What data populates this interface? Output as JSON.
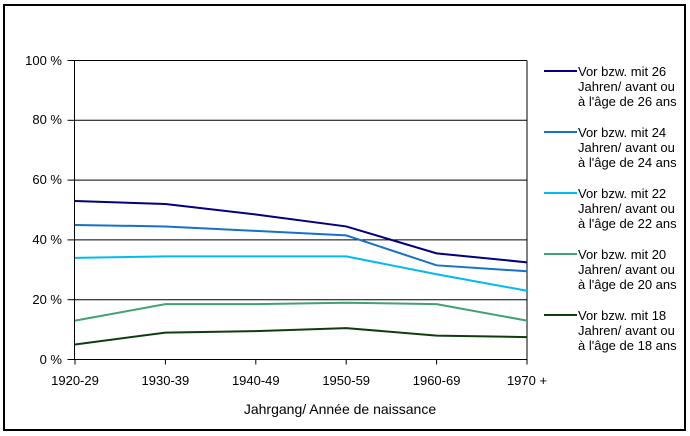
{
  "chart_data": {
    "type": "line",
    "title": "",
    "x_axis_title": "Jahrgang/ Année de naissance",
    "categories": [
      "1920-29",
      "1930-39",
      "1940-49",
      "1950-59",
      "1960-69",
      "1970 +"
    ],
    "ylim": [
      0,
      100
    ],
    "grid": true,
    "legend_position": "right",
    "y_ticks": [
      {
        "label": "100 %",
        "value": 100
      },
      {
        "label": "80 %",
        "value": 80
      },
      {
        "label": "60 %",
        "value": 60
      },
      {
        "label": "40 %",
        "value": 40
      },
      {
        "label": "20 %",
        "value": 20
      },
      {
        "label": "0 %",
        "value": 0
      }
    ],
    "series": [
      {
        "label": "Vor bzw. mit 26 Jahren/ avant ou à l'âge de 26 ans",
        "color": "#000080",
        "values": [
          53,
          52,
          48.5,
          44.5,
          35.5,
          32.5
        ]
      },
      {
        "label": "Vor bzw. mit 24 Jahren/ avant ou à l'âge de 24 ans",
        "color": "#1572C8",
        "values": [
          45,
          44.5,
          43,
          41.5,
          31.5,
          29.5
        ]
      },
      {
        "label": "Vor bzw. mit 22 Jahren/ avant ou à l'âge de 22 ans",
        "color": "#00BBF0",
        "values": [
          34,
          34.5,
          34.5,
          34.5,
          28.5,
          23
        ]
      },
      {
        "label": "Vor bzw. mit 20 Jahren/ avant ou à l'âge de 20 ans",
        "color": "#41A173",
        "values": [
          13,
          18.5,
          18.5,
          19,
          18.5,
          13
        ]
      },
      {
        "label": "Vor bzw. mit 18 Jahren/ avant ou à l'âge de 18 ans",
        "color": "#0D3D11",
        "values": [
          5,
          9,
          9.5,
          10.5,
          8,
          7.5
        ]
      }
    ]
  }
}
